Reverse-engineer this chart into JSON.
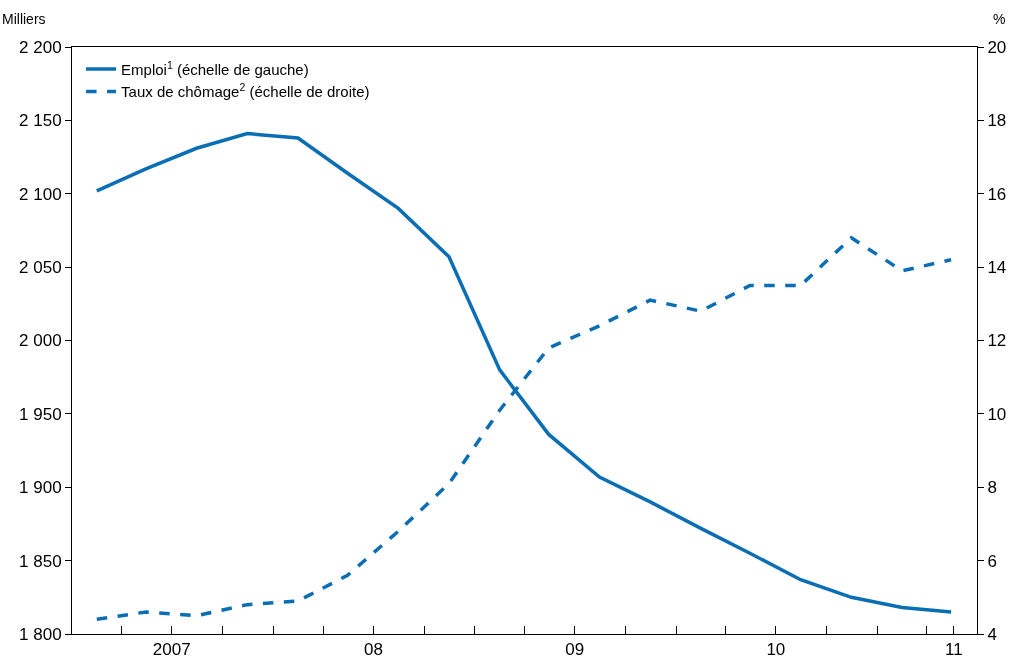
{
  "chart_data": {
    "type": "line",
    "ylabel": "Milliers",
    "y2label": "%",
    "x": [
      "2007-02-15",
      "2007-05-15",
      "2007-08-15",
      "2007-11-15",
      "2008-02-15",
      "2008-05-15",
      "2008-08-15",
      "2008-11-15",
      "2009-02-15",
      "2009-05-15",
      "2009-08-15",
      "2009-11-15",
      "2010-02-15",
      "2010-05-15",
      "2010-08-15",
      "2010-11-15",
      "2011-02-15",
      "2011-05-15"
    ],
    "series": [
      {
        "name": "Emploi$^{1}$ (échelle de gauche)",
        "color": "#0a6eb4",
        "line_style": "solid",
        "values": [
          2102,
          2117,
          2131,
          2141,
          2138,
          2114,
          2090,
          2057,
          1980,
          1936,
          1907,
          1890,
          1872,
          1855,
          1837,
          1825,
          1818,
          1815
        ]
      },
      {
        "name": "Taux de chômage$^{2}$ (échelle de droite)",
        "color": "#0a6eb4",
        "line_style": "dashed",
        "axis": "y2",
        "values": [
          4.4,
          4.6,
          4.5,
          4.8,
          4.9,
          5.6,
          6.8,
          8.1,
          10.1,
          11.8,
          12.4,
          13.1,
          12.8,
          13.5,
          13.5,
          14.8,
          13.9,
          14.2
        ]
      }
    ],
    "xlim": [
      "2007-01-01",
      "2011-07-01"
    ],
    "xticks": [
      {
        "value": "2007-04-01",
        "label": null
      },
      {
        "value": "2007-07-01",
        "label": "2007"
      },
      {
        "value": "2007-10-01",
        "label": null
      },
      {
        "value": "2008-01-01",
        "label": null
      },
      {
        "value": "2008-04-01",
        "label": null
      },
      {
        "value": "2008-07-01",
        "label": "08"
      },
      {
        "value": "2008-10-01",
        "label": null
      },
      {
        "value": "2009-01-01",
        "label": null
      },
      {
        "value": "2009-04-01",
        "label": null
      },
      {
        "value": "2009-07-01",
        "label": "09"
      },
      {
        "value": "2009-10-01",
        "label": null
      },
      {
        "value": "2010-01-01",
        "label": null
      },
      {
        "value": "2010-04-01",
        "label": null
      },
      {
        "value": "2010-07-01",
        "label": "10"
      },
      {
        "value": "2010-10-01",
        "label": null
      },
      {
        "value": "2011-01-01",
        "label": null
      },
      {
        "value": "2011-04-01",
        "label": null
      },
      {
        "value": "2011-05-20",
        "label": "11"
      }
    ],
    "ylim": [
      1800,
      2200
    ],
    "yticks": [
      {
        "value": 1800,
        "label": "1 800"
      },
      {
        "value": 1850,
        "label": "1 850"
      },
      {
        "value": 1900,
        "label": "1 900"
      },
      {
        "value": 1950,
        "label": "1 950"
      },
      {
        "value": 2000,
        "label": "2 000"
      },
      {
        "value": 2050,
        "label": "2 050"
      },
      {
        "value": 2100,
        "label": "2 100"
      },
      {
        "value": 2150,
        "label": "2 150"
      },
      {
        "value": 2200,
        "label": "2 200"
      }
    ],
    "y2lim": [
      4,
      20
    ],
    "y2ticks": [
      4,
      6,
      8,
      10,
      12,
      14,
      16,
      18,
      20
    ],
    "legend": "top left",
    "marker": "none"
  }
}
